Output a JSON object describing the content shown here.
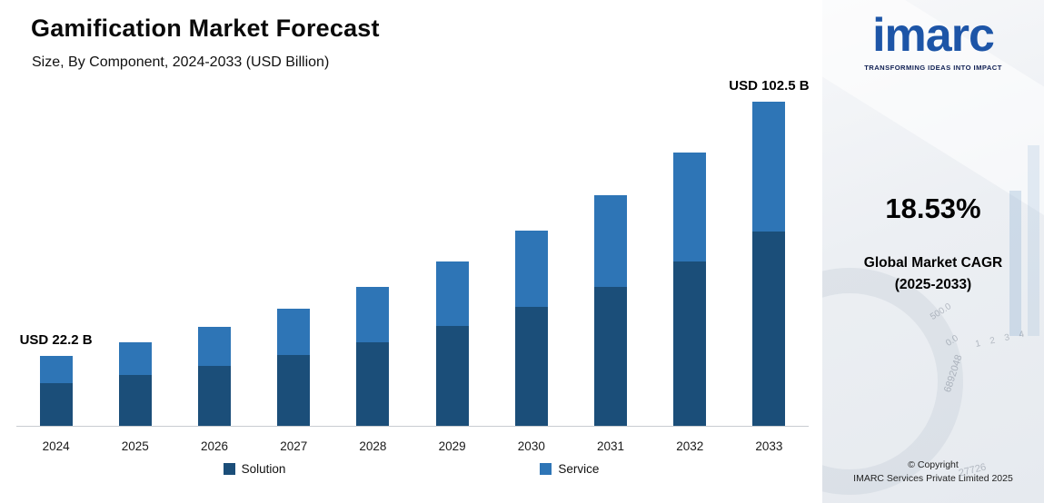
{
  "header": {
    "title": "Gamification Market Forecast",
    "subtitle": "Size, By Component, 2024-2033 (USD Billion)"
  },
  "chart_data": {
    "type": "bar",
    "stacked": true,
    "title": "Gamification Market Forecast",
    "subtitle": "Size, By Component, 2024-2033 (USD Billion)",
    "unit": "USD Billion",
    "categories": [
      "2024",
      "2025",
      "2026",
      "2027",
      "2028",
      "2029",
      "2030",
      "2031",
      "2032",
      "2033"
    ],
    "series": [
      {
        "name": "Solution",
        "color": "#1b4e79",
        "values": [
          13.5,
          16.0,
          19.0,
          22.5,
          26.5,
          31.5,
          37.5,
          44.0,
          52.0,
          61.5
        ]
      },
      {
        "name": "Service",
        "color": "#2e75b6",
        "values": [
          8.7,
          10.3,
          12.2,
          14.5,
          17.3,
          20.5,
          24.1,
          29.0,
          34.5,
          41.0
        ]
      }
    ],
    "totals": [
      22.2,
      26.3,
      31.2,
      37.0,
      43.8,
      52.0,
      61.6,
      73.0,
      86.5,
      102.5
    ],
    "annotations": [
      {
        "category": "2024",
        "text": "USD 22.2 B"
      },
      {
        "category": "2033",
        "text": "USD 102.5 B"
      }
    ],
    "xlabel": "",
    "ylabel": "",
    "ylim": [
      0,
      105
    ],
    "grid": false,
    "legend_position": "bottom"
  },
  "sidebar": {
    "logo": "imarc",
    "tagline": "TRANSFORMING IDEAS INTO IMPACT",
    "cagr_value": "18.53%",
    "cagr_line1": "Global Market CAGR",
    "cagr_line2": "(2025-2033)",
    "copyright_line1": "© Copyright",
    "copyright_line2": "IMARC Services Private Limited 2025",
    "watermarks": [
      "6892048",
      "500.0",
      "0.0",
      "1 2 3 4",
      "27726"
    ]
  }
}
